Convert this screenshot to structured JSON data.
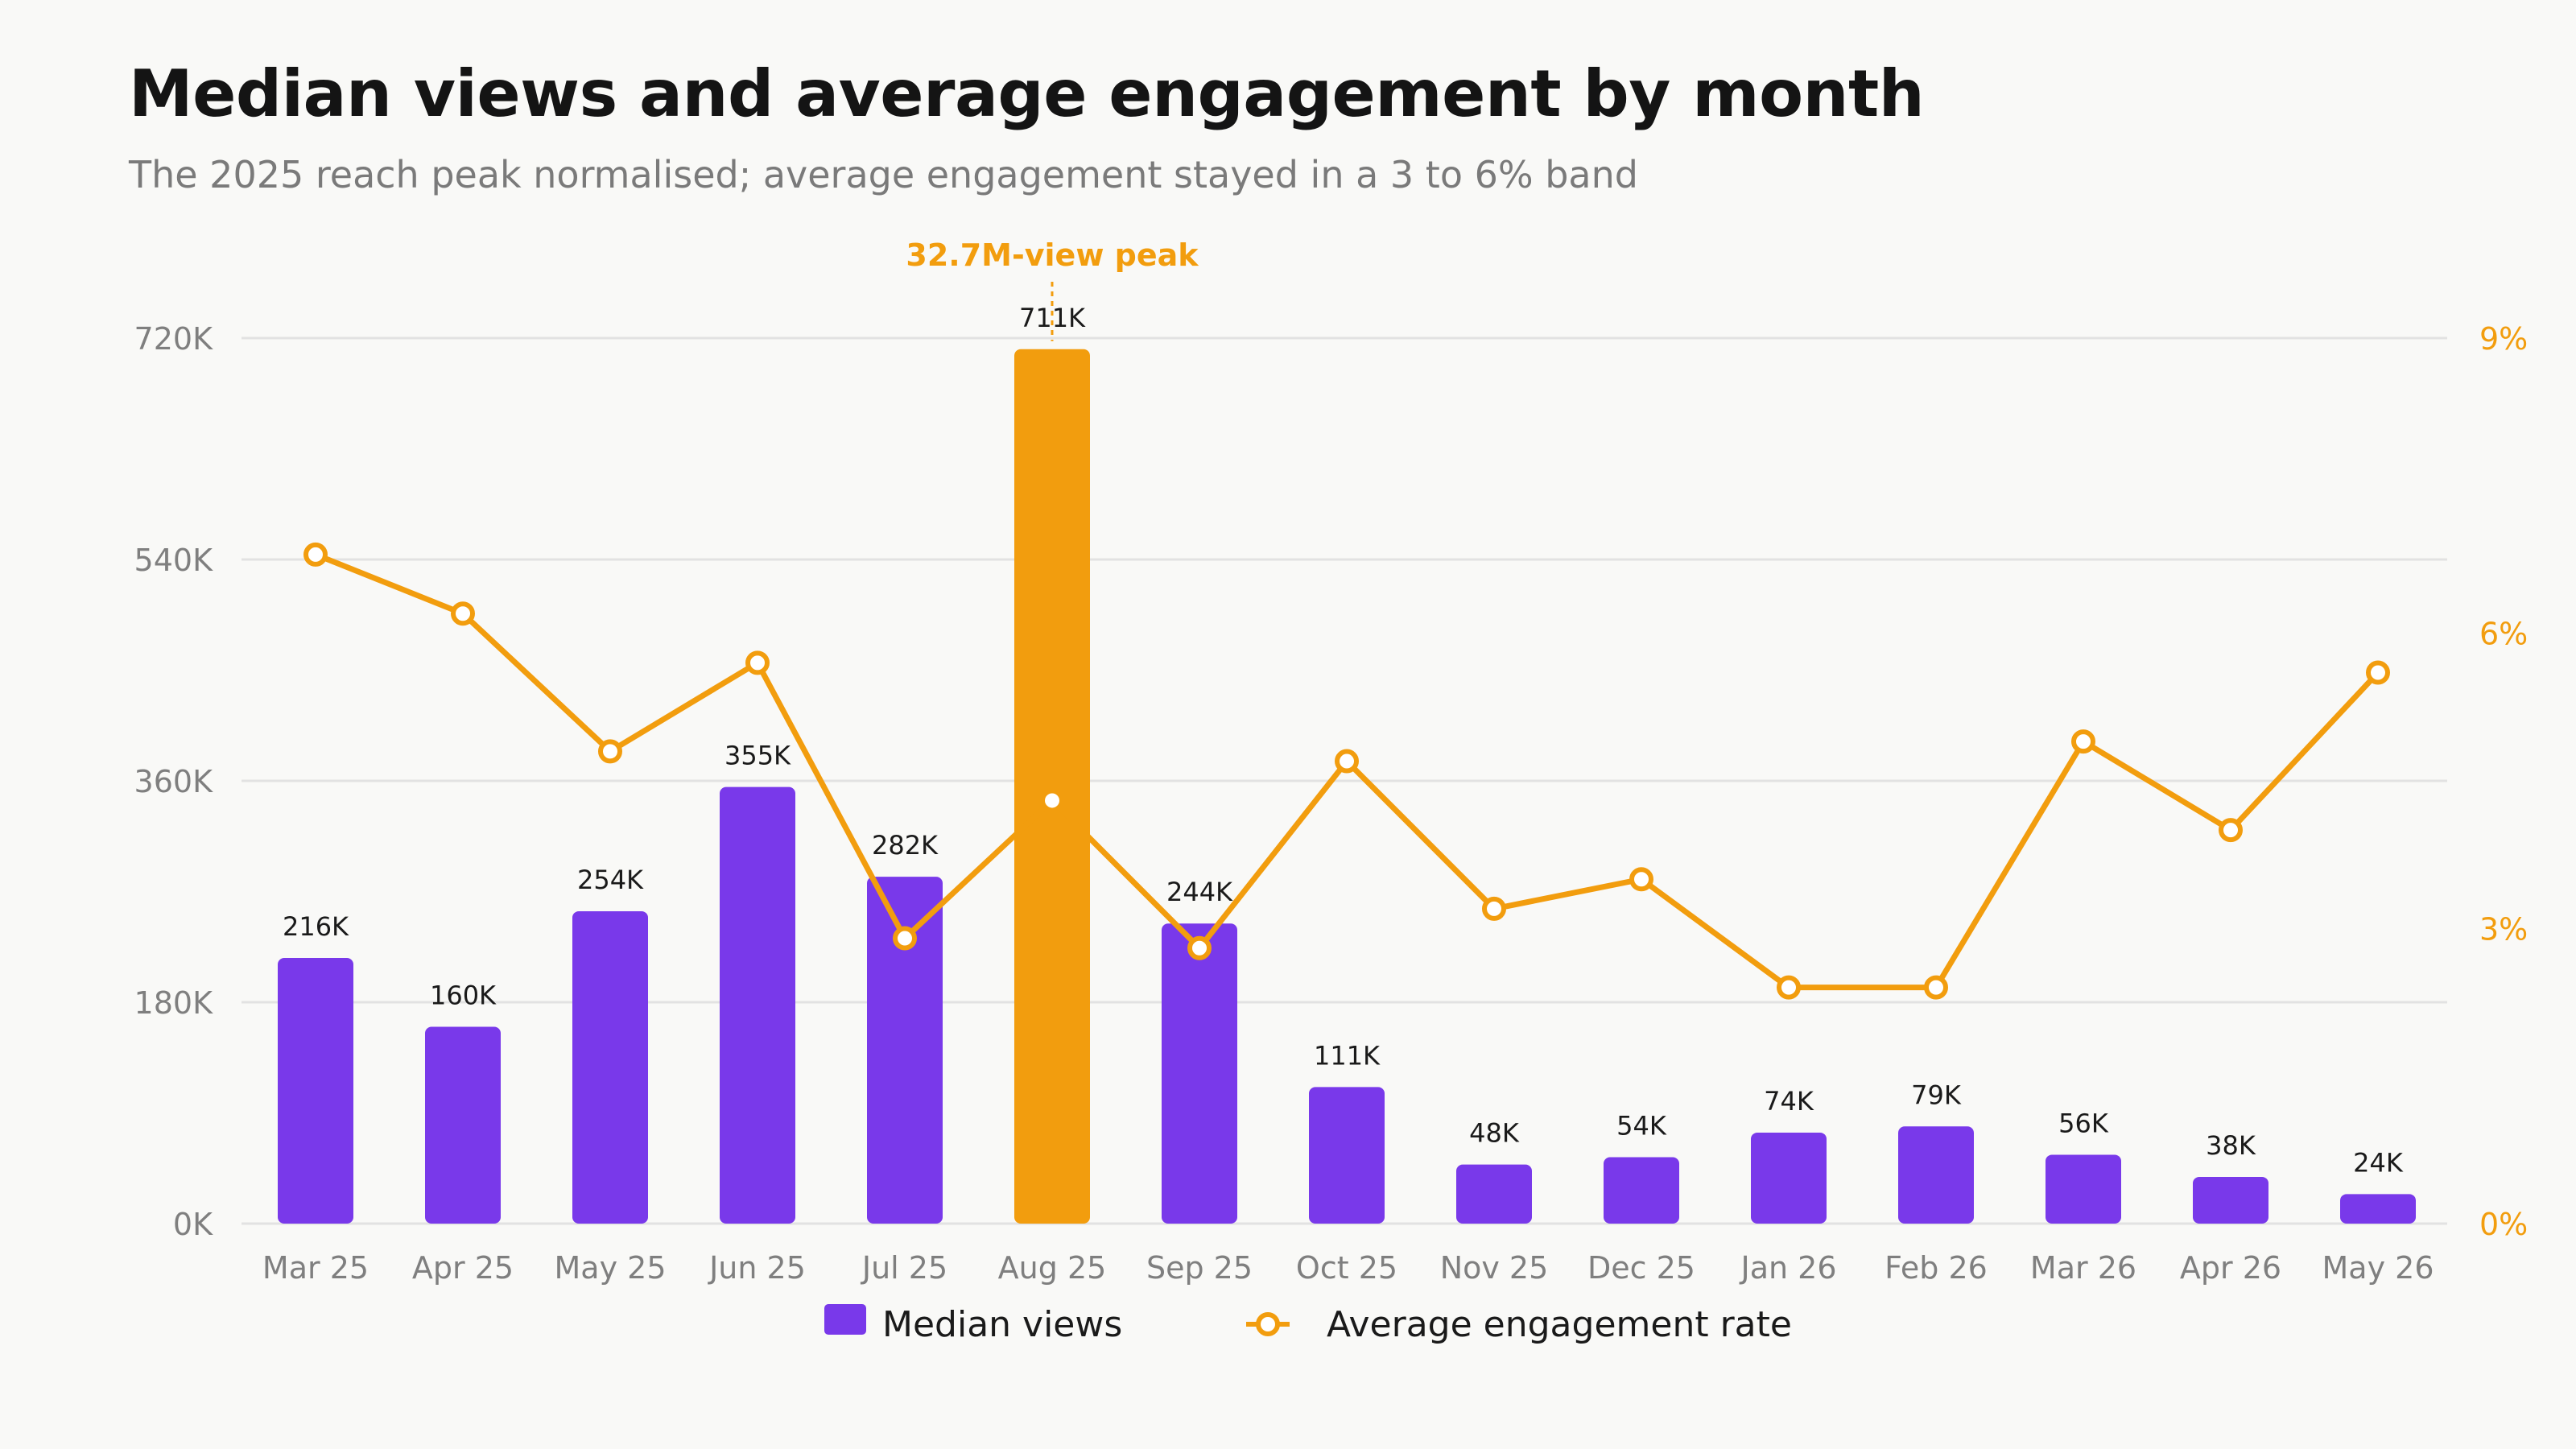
{
  "title": "Median views and average engagement by month",
  "subtitle": "The 2025 reach peak normalised; average engagement stayed in a 3 to 6% band",
  "colors": {
    "bar": "#7939ea",
    "highlight": "#f29d0e",
    "line": "#f29d0e",
    "grid": "#e2e2e2",
    "axis_text": "#7f7f7f",
    "right_axis_text": "#f29d0e",
    "label_text": "#1a1a1a"
  },
  "chart_data": {
    "type": "bar",
    "categories": [
      "Mar 25",
      "Apr 25",
      "May 25",
      "Jun 25",
      "Jul 25",
      "Aug 25",
      "Sep 25",
      "Oct 25",
      "Nov 25",
      "Dec 25",
      "Jan 26",
      "Feb 26",
      "Mar 26",
      "Apr 26",
      "May 26"
    ],
    "series": [
      {
        "name": "Median views",
        "type": "bar",
        "axis": "left",
        "values": [
          216000,
          160000,
          254000,
          355000,
          282000,
          711000,
          244000,
          111000,
          48000,
          54000,
          74000,
          79000,
          56000,
          38000,
          24000
        ],
        "labels": [
          "216K",
          "160K",
          "254K",
          "355K",
          "282K",
          "711K",
          "244K",
          "111K",
          "48K",
          "54K",
          "74K",
          "79K",
          "56K",
          "38K",
          "24K"
        ],
        "highlight_index": 5
      },
      {
        "name": "Average engagement rate",
        "type": "line",
        "axis": "right",
        "values": [
          6.8,
          6.2,
          4.8,
          5.7,
          2.9,
          4.3,
          2.8,
          4.7,
          3.2,
          3.5,
          2.4,
          2.4,
          4.9,
          4.0,
          5.6
        ]
      }
    ],
    "left_axis": {
      "ticks": [
        "0K",
        "180K",
        "360K",
        "540K",
        "720K"
      ],
      "tick_values": [
        0,
        180000,
        360000,
        540000,
        720000
      ],
      "ylim": [
        0,
        720000
      ]
    },
    "right_axis": {
      "ticks": [
        "0%",
        "3%",
        "6%",
        "9%"
      ],
      "tick_values": [
        0,
        3,
        6,
        9
      ],
      "ylim": [
        0,
        9
      ]
    },
    "annotation": {
      "text": "32.7M-view peak",
      "category_index": 5
    },
    "grid": true,
    "legend_placement": "bottom-center"
  }
}
